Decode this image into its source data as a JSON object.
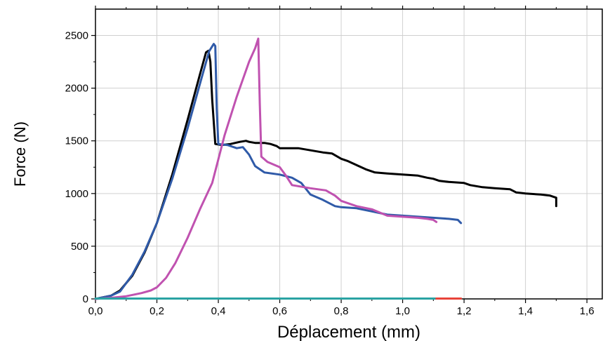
{
  "chart_data": {
    "type": "line",
    "title": "",
    "xlabel": "Déplacement (mm)",
    "ylabel": "Force (N)",
    "xlim": [
      0,
      1.65
    ],
    "ylim": [
      0,
      2750
    ],
    "xticks": [
      0,
      0.2,
      0.4,
      0.6,
      0.8,
      1.0,
      1.2,
      1.4,
      1.6
    ],
    "xtick_labels": [
      "0,0",
      "0,2",
      "0,4",
      "0,6",
      "0,8",
      "1,0",
      "1,2",
      "1,4",
      "1,6"
    ],
    "yticks": [
      0,
      500,
      1000,
      1500,
      2000,
      2500
    ],
    "ytick_labels": [
      "0",
      "500",
      "1000",
      "1500",
      "2000",
      "2500"
    ],
    "grid": true,
    "legend": "none",
    "series": [
      {
        "color": "#000000",
        "x": [
          0,
          0.05,
          0.08,
          0.12,
          0.16,
          0.2,
          0.25,
          0.3,
          0.34,
          0.36,
          0.368,
          0.374,
          0.38,
          0.39,
          0.41,
          0.44,
          0.47,
          0.49,
          0.5,
          0.52,
          0.55,
          0.57,
          0.59,
          0.6,
          0.63,
          0.66,
          0.7,
          0.74,
          0.77,
          0.8,
          0.82,
          0.85,
          0.88,
          0.91,
          0.95,
          1.0,
          1.05,
          1.08,
          1.1,
          1.12,
          1.15,
          1.2,
          1.22,
          1.26,
          1.3,
          1.35,
          1.37,
          1.4,
          1.45,
          1.48,
          1.5,
          1.5
        ],
        "y": [
          0,
          30,
          80,
          220,
          440,
          720,
          1180,
          1700,
          2130,
          2340,
          2355,
          2250,
          1890,
          1470,
          1460,
          1470,
          1490,
          1500,
          1490,
          1480,
          1480,
          1470,
          1450,
          1430,
          1430,
          1430,
          1410,
          1390,
          1380,
          1330,
          1310,
          1270,
          1230,
          1200,
          1190,
          1180,
          1170,
          1150,
          1140,
          1120,
          1110,
          1100,
          1080,
          1060,
          1050,
          1040,
          1010,
          1000,
          990,
          980,
          960,
          880
        ]
      },
      {
        "color": "#2f5aa8",
        "x": [
          0,
          0.05,
          0.08,
          0.12,
          0.16,
          0.2,
          0.25,
          0.3,
          0.34,
          0.37,
          0.385,
          0.39,
          0.395,
          0.4,
          0.43,
          0.46,
          0.48,
          0.5,
          0.52,
          0.55,
          0.6,
          0.64,
          0.67,
          0.7,
          0.74,
          0.78,
          0.8,
          0.85,
          0.9,
          0.95,
          1.0,
          1.05,
          1.1,
          1.15,
          1.18,
          1.19
        ],
        "y": [
          0,
          30,
          70,
          230,
          450,
          720,
          1140,
          1620,
          2040,
          2350,
          2420,
          2400,
          1800,
          1470,
          1460,
          1430,
          1440,
          1370,
          1260,
          1200,
          1180,
          1150,
          1100,
          990,
          940,
          880,
          870,
          860,
          830,
          800,
          790,
          780,
          770,
          760,
          750,
          720
        ]
      },
      {
        "color": "#c052b0",
        "x": [
          0,
          0.05,
          0.1,
          0.15,
          0.18,
          0.2,
          0.23,
          0.26,
          0.3,
          0.34,
          0.38,
          0.42,
          0.46,
          0.5,
          0.52,
          0.53,
          0.535,
          0.54,
          0.56,
          0.6,
          0.62,
          0.64,
          0.7,
          0.75,
          0.78,
          0.8,
          0.85,
          0.9,
          0.95,
          1.0,
          1.05,
          1.08,
          1.1,
          1.11
        ],
        "y": [
          0,
          10,
          25,
          55,
          80,
          110,
          200,
          340,
          580,
          850,
          1100,
          1550,
          1920,
          2250,
          2380,
          2470,
          1850,
          1350,
          1300,
          1250,
          1170,
          1080,
          1050,
          1030,
          980,
          930,
          880,
          850,
          790,
          780,
          770,
          760,
          750,
          730
        ]
      },
      {
        "color": "#2aa3a3",
        "x": [
          0,
          1.11
        ],
        "y": [
          3,
          3
        ]
      },
      {
        "color": "#e8443a",
        "x": [
          1.11,
          1.19
        ],
        "y": [
          3,
          3
        ]
      }
    ]
  }
}
